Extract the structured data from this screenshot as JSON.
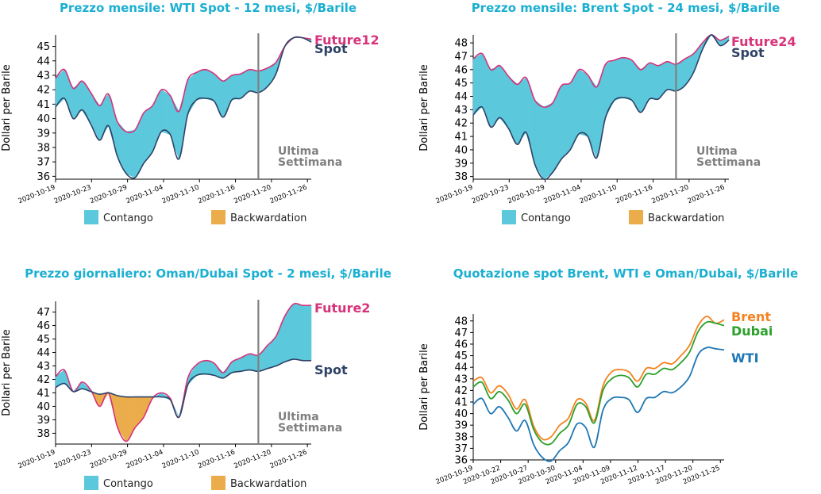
{
  "common": {
    "colors": {
      "contango": "#5BC8DC",
      "backwardation": "#EBAD4B",
      "future_line": "#D6337A",
      "spot_line": "#2E4266",
      "title": "#1BAFD1",
      "vline": "#808080",
      "brent": "#F5821F",
      "dubai": "#2CA02C",
      "wti": "#1F77B4"
    },
    "ylabel": "Dollari per Barile",
    "legend": {
      "contango": "Contango",
      "backwardation": "Backwardation"
    },
    "vline_label": [
      "Ultima",
      "Settimana"
    ],
    "x_tick_labels": [
      "2020-10-19",
      "2020-10-23",
      "2020-10-29",
      "2020-11-04",
      "2020-11-10",
      "2020-11-16",
      "2020-11-20",
      "2020-11-26"
    ],
    "x_tick_labels_combined": [
      "2020-10-19",
      "2020-10-22",
      "2020-10-27",
      "2020-10-30",
      "2020-11-04",
      "2020-11-09",
      "2020-11-12",
      "2020-11-17",
      "2020-11-20",
      "2020-11-25"
    ]
  },
  "chart_data": [
    {
      "id": "wti",
      "type": "area",
      "title": "Prezzo mensile: WTI Spot - 12 mesi, $/Barile",
      "ylabel": "Dollari per Barile",
      "ylim": [
        35.8,
        45.8
      ],
      "yticks": [
        36,
        37,
        38,
        39,
        40,
        41,
        42,
        43,
        44,
        45
      ],
      "xticks": [
        "2020-10-19",
        "2020-10-23",
        "2020-10-29",
        "2020-11-04",
        "2020-11-10",
        "2020-11-16",
        "2020-11-20",
        "2020-11-26"
      ],
      "vline_index": 23,
      "vline_label": "Ultima Settimana",
      "series": [
        {
          "name": "Future12",
          "values": [
            42.8,
            43.4,
            42.1,
            42.6,
            41.8,
            40.9,
            41.7,
            39.8,
            39.1,
            39.2,
            40.4,
            40.9,
            42.0,
            41.6,
            40.5,
            42.7,
            43.2,
            43.4,
            43.1,
            42.6,
            43.0,
            43.1,
            43.4,
            43.3,
            43.5,
            43.9,
            45.0,
            45.6,
            45.6,
            45.5
          ]
        },
        {
          "name": "Spot",
          "values": [
            40.8,
            41.4,
            40.0,
            40.6,
            39.6,
            38.5,
            39.5,
            37.4,
            36.2,
            35.9,
            36.9,
            37.7,
            39.1,
            38.9,
            37.2,
            40.3,
            41.3,
            41.4,
            41.2,
            40.1,
            41.3,
            41.4,
            41.9,
            41.8,
            42.2,
            43.1,
            45.0,
            45.6,
            45.6,
            45.3
          ]
        }
      ]
    },
    {
      "id": "brent",
      "type": "area",
      "title": "Prezzo mensile: Brent Spot - 24 mesi, $/Barile",
      "ylabel": "Dollari per Barile",
      "ylim": [
        37.8,
        48.6
      ],
      "yticks": [
        38,
        39,
        40,
        41,
        42,
        43,
        44,
        45,
        46,
        47,
        48
      ],
      "xticks": [
        "2020-10-19",
        "2020-10-23",
        "2020-10-29",
        "2020-11-04",
        "2020-11-10",
        "2020-11-16",
        "2020-11-20",
        "2020-11-26"
      ],
      "vline_index": 23,
      "vline_label": "Ultima Settimana",
      "series": [
        {
          "name": "Future24",
          "values": [
            46.8,
            47.2,
            46.0,
            46.3,
            45.5,
            44.9,
            45.4,
            43.7,
            43.2,
            43.5,
            44.8,
            45.0,
            46.0,
            45.6,
            44.7,
            46.4,
            46.7,
            46.9,
            46.7,
            46.0,
            46.5,
            46.3,
            46.6,
            46.4,
            46.8,
            47.2,
            48.0,
            48.6,
            48.2,
            48.5
          ]
        },
        {
          "name": "Spot",
          "values": [
            42.6,
            43.2,
            41.7,
            42.4,
            41.6,
            40.4,
            41.3,
            38.9,
            37.8,
            38.3,
            39.3,
            40.0,
            41.2,
            41.0,
            39.4,
            42.4,
            43.7,
            43.9,
            43.7,
            42.8,
            43.8,
            43.8,
            44.5,
            44.4,
            44.8,
            45.8,
            47.5,
            48.6,
            47.8,
            48.2
          ]
        }
      ]
    },
    {
      "id": "oman",
      "type": "area",
      "title": "Prezzo giornaliero: Oman/Dubai Spot - 2 mesi, $/Barile",
      "ylabel": "Dollari per Barile",
      "ylim": [
        37.2,
        47.8
      ],
      "yticks": [
        38,
        39,
        40,
        41,
        42,
        43,
        44,
        45,
        46,
        47
      ],
      "xticks": [
        "2020-10-19",
        "2020-10-23",
        "2020-10-29",
        "2020-11-04",
        "2020-11-10",
        "2020-11-16",
        "2020-11-20",
        "2020-11-26"
      ],
      "vline_index": 23,
      "vline_label": "Ultima Settimana",
      "series": [
        {
          "name": "Future2",
          "values": [
            42.2,
            42.7,
            41.1,
            41.8,
            41.2,
            40.0,
            41.0,
            38.5,
            37.4,
            38.4,
            39.2,
            40.6,
            41.0,
            40.6,
            39.2,
            42.1,
            43.1,
            43.4,
            43.2,
            42.5,
            43.3,
            43.6,
            43.9,
            43.8,
            44.5,
            45.2,
            46.7,
            47.6,
            47.5,
            47.5
          ]
        },
        {
          "name": "Spot",
          "values": [
            41.4,
            41.7,
            41.1,
            41.3,
            41.1,
            40.9,
            41.0,
            40.8,
            40.7,
            40.7,
            40.7,
            40.7,
            40.7,
            40.5,
            39.2,
            41.6,
            42.3,
            42.4,
            42.3,
            42.1,
            42.5,
            42.6,
            42.7,
            42.6,
            42.8,
            43.0,
            43.3,
            43.5,
            43.4,
            43.4
          ]
        }
      ]
    },
    {
      "id": "combined",
      "type": "line",
      "title": "Quotazione spot Brent, WTI e Oman/Dubai, $/Barile",
      "ylabel": "Dollari per Barile",
      "ylim": [
        36,
        48.6
      ],
      "yticks": [
        36,
        37,
        38,
        39,
        40,
        41,
        42,
        43,
        44,
        45,
        46,
        47,
        48
      ],
      "xticks": [
        "2020-10-19",
        "2020-10-22",
        "2020-10-27",
        "2020-10-30",
        "2020-11-04",
        "2020-11-09",
        "2020-11-12",
        "2020-11-17",
        "2020-11-20",
        "2020-11-25"
      ],
      "series": [
        {
          "name": "Brent",
          "values": [
            42.8,
            43.1,
            41.8,
            42.4,
            41.7,
            40.4,
            41.2,
            38.9,
            37.8,
            38.0,
            39.0,
            39.6,
            41.2,
            40.9,
            39.4,
            42.4,
            43.6,
            43.8,
            43.6,
            42.8,
            43.9,
            43.9,
            44.4,
            44.3,
            45.0,
            45.9,
            47.6,
            48.4,
            47.8,
            48.1
          ]
        },
        {
          "name": "Dubai",
          "values": [
            42.3,
            42.7,
            41.3,
            41.9,
            41.2,
            40.0,
            40.8,
            38.6,
            37.5,
            37.4,
            38.3,
            39.0,
            40.8,
            40.6,
            39.2,
            42.0,
            43.0,
            43.3,
            43.1,
            42.3,
            43.4,
            43.4,
            43.9,
            43.8,
            44.4,
            45.3,
            47.1,
            47.9,
            47.8,
            47.6
          ]
        },
        {
          "name": "WTI",
          "values": [
            40.8,
            41.3,
            40.0,
            40.6,
            39.7,
            38.5,
            39.4,
            37.3,
            36.2,
            35.9,
            36.8,
            37.5,
            39.1,
            38.8,
            37.1,
            40.3,
            41.3,
            41.4,
            41.2,
            40.1,
            41.3,
            41.4,
            41.9,
            41.8,
            42.3,
            43.2,
            45.1,
            45.7,
            45.6,
            45.5
          ]
        }
      ]
    }
  ]
}
